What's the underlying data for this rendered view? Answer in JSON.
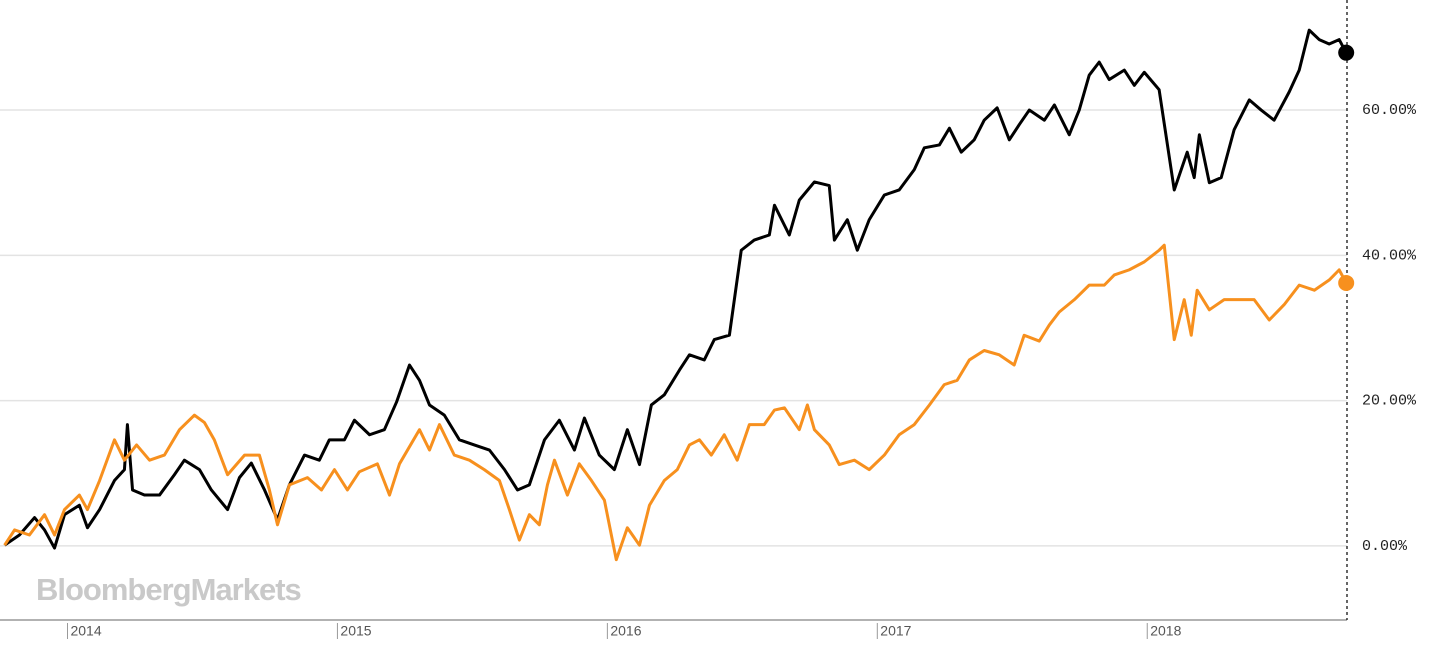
{
  "chart_data": {
    "type": "line",
    "brand": "BloombergMarkets",
    "xlim": [
      2013.75,
      2018.74
    ],
    "xticks": [
      2014,
      2015,
      2016,
      2017,
      2018
    ],
    "ylim": [
      -10.2,
      75.15
    ],
    "yticks": [
      {
        "value": 0,
        "label": "0.00%"
      },
      {
        "value": 20,
        "label": "20.00%"
      },
      {
        "value": 40,
        "label": "40.00%"
      },
      {
        "value": 60,
        "label": "60.00%"
      }
    ],
    "grid": true,
    "series": [
      {
        "color": "#000000",
        "x": [
          2013.767,
          2013.822,
          2013.878,
          2013.915,
          2013.952,
          2013.989,
          2014.044,
          2014.074,
          2014.119,
          2014.174,
          2014.211,
          2014.222,
          2014.241,
          2014.285,
          2014.341,
          2014.396,
          2014.433,
          2014.489,
          2014.533,
          2014.593,
          2014.637,
          2014.681,
          2014.73,
          2014.778,
          2014.822,
          2014.878,
          2014.933,
          2014.97,
          2015.026,
          2015.063,
          2015.119,
          2015.174,
          2015.219,
          2015.267,
          2015.304,
          2015.341,
          2015.396,
          2015.452,
          2015.507,
          2015.563,
          2015.619,
          2015.667,
          2015.711,
          2015.767,
          2015.822,
          2015.878,
          2015.915,
          2015.97,
          2016.026,
          2016.074,
          2016.119,
          2016.163,
          2016.211,
          2016.267,
          2016.304,
          2016.359,
          2016.396,
          2016.452,
          2016.496,
          2016.544,
          2016.6,
          2016.619,
          2016.674,
          2016.711,
          2016.767,
          2016.822,
          2016.841,
          2016.889,
          2016.926,
          2016.97,
          2017.026,
          2017.081,
          2017.137,
          2017.174,
          2017.23,
          2017.267,
          2017.311,
          2017.359,
          2017.396,
          2017.444,
          2017.489,
          2017.526,
          2017.563,
          2017.619,
          2017.656,
          2017.711,
          2017.748,
          2017.785,
          2017.822,
          2017.859,
          2017.915,
          2017.952,
          2017.989,
          2018.044,
          2018.1,
          2018.148,
          2018.174,
          2018.193,
          2018.23,
          2018.274,
          2018.322,
          2018.378,
          2018.422,
          2018.47,
          2018.526,
          2018.563,
          2018.6,
          2018.637,
          2018.674,
          2018.711,
          2018.737
        ],
        "values": [
          0.1,
          1.5,
          3.9,
          2.2,
          -0.3,
          4.3,
          5.6,
          2.5,
          5,
          9,
          10.5,
          16.7,
          7.7,
          7,
          7,
          9.8,
          11.8,
          10.5,
          7.7,
          5,
          9.4,
          11.4,
          7.7,
          3.6,
          8.4,
          12.5,
          11.8,
          14.6,
          14.6,
          17.3,
          15.3,
          16,
          19.8,
          24.9,
          22.8,
          19.4,
          18,
          14.6,
          13.9,
          13.2,
          10.5,
          7.7,
          8.4,
          14.6,
          17.3,
          13.2,
          17.6,
          12.5,
          10.5,
          16,
          11.2,
          19.4,
          20.8,
          24.2,
          26.3,
          25.6,
          28.4,
          29,
          40.7,
          42.1,
          42.8,
          46.9,
          42.8,
          47.6,
          50.1,
          49.6,
          42.1,
          44.9,
          40.7,
          44.9,
          48.3,
          49,
          51.8,
          54.8,
          55.2,
          57.5,
          54.2,
          55.9,
          58.6,
          60.3,
          55.9,
          58,
          60,
          58.6,
          60.7,
          56.6,
          60,
          64.8,
          66.6,
          64.2,
          65.5,
          63.4,
          65.2,
          62.8,
          49,
          54.2,
          50.7,
          56.6,
          50,
          50.7,
          57.3,
          61.4,
          60,
          58.6,
          62.5,
          65.5,
          71,
          69.7,
          69.1,
          69.7,
          67.9
        ]
      },
      {
        "color": "#f7901e",
        "x": [
          2013.767,
          2013.804,
          2013.859,
          2013.915,
          2013.952,
          2013.989,
          2014.044,
          2014.074,
          2014.119,
          2014.174,
          2014.211,
          2014.256,
          2014.304,
          2014.359,
          2014.415,
          2014.47,
          2014.507,
          2014.544,
          2014.593,
          2014.656,
          2014.711,
          2014.748,
          2014.778,
          2014.822,
          2014.889,
          2014.941,
          2014.989,
          2015.037,
          2015.081,
          2015.148,
          2015.193,
          2015.23,
          2015.304,
          2015.341,
          2015.378,
          2015.433,
          2015.489,
          2015.544,
          2015.6,
          2015.637,
          2015.674,
          2015.711,
          2015.748,
          2015.778,
          2015.804,
          2015.852,
          2015.896,
          2015.941,
          2015.989,
          2016.033,
          2016.074,
          2016.119,
          2016.156,
          2016.211,
          2016.259,
          2016.304,
          2016.341,
          2016.385,
          2016.433,
          2016.481,
          2016.526,
          2016.581,
          2016.619,
          2016.656,
          2016.711,
          2016.741,
          2016.767,
          2016.822,
          2016.859,
          2016.915,
          2016.97,
          2017.026,
          2017.081,
          2017.137,
          2017.193,
          2017.248,
          2017.296,
          2017.341,
          2017.396,
          2017.452,
          2017.507,
          2017.544,
          2017.6,
          2017.637,
          2017.674,
          2017.73,
          2017.785,
          2017.841,
          2017.878,
          2017.933,
          2017.989,
          2018.044,
          2018.063,
          2018.1,
          2018.137,
          2018.163,
          2018.185,
          2018.23,
          2018.285,
          2018.341,
          2018.396,
          2018.452,
          2018.507,
          2018.563,
          2018.619,
          2018.674,
          2018.711,
          2018.737
        ],
        "values": [
          0.1,
          2.2,
          1.5,
          4.3,
          1.5,
          5,
          7,
          5,
          9,
          14.6,
          11.8,
          13.9,
          11.8,
          12.5,
          16,
          18,
          17,
          14.6,
          9.8,
          12.5,
          12.5,
          7.7,
          2.9,
          8.4,
          9.4,
          7.7,
          10.5,
          7.7,
          10.2,
          11.3,
          7,
          11.3,
          16,
          13.2,
          16.7,
          12.5,
          11.8,
          10.5,
          9,
          5,
          0.8,
          4.3,
          2.9,
          8.4,
          11.8,
          7,
          11.3,
          9,
          6.3,
          -1.9,
          2.5,
          0.1,
          5.6,
          9,
          10.5,
          13.9,
          14.6,
          12.5,
          15.3,
          11.8,
          16.7,
          16.7,
          18.7,
          19,
          16,
          19.4,
          16,
          13.9,
          11.2,
          11.8,
          10.5,
          12.5,
          15.3,
          16.7,
          19.4,
          22.2,
          22.8,
          25.6,
          26.9,
          26.3,
          24.9,
          29,
          28.2,
          30.4,
          32.2,
          33.9,
          35.9,
          35.9,
          37.3,
          38,
          39.1,
          40.7,
          41.4,
          28.4,
          33.9,
          29,
          35.2,
          32.5,
          33.9,
          33.9,
          33.9,
          31.1,
          33.2,
          35.9,
          35.2,
          36.6,
          38,
          36.2
        ]
      }
    ]
  }
}
